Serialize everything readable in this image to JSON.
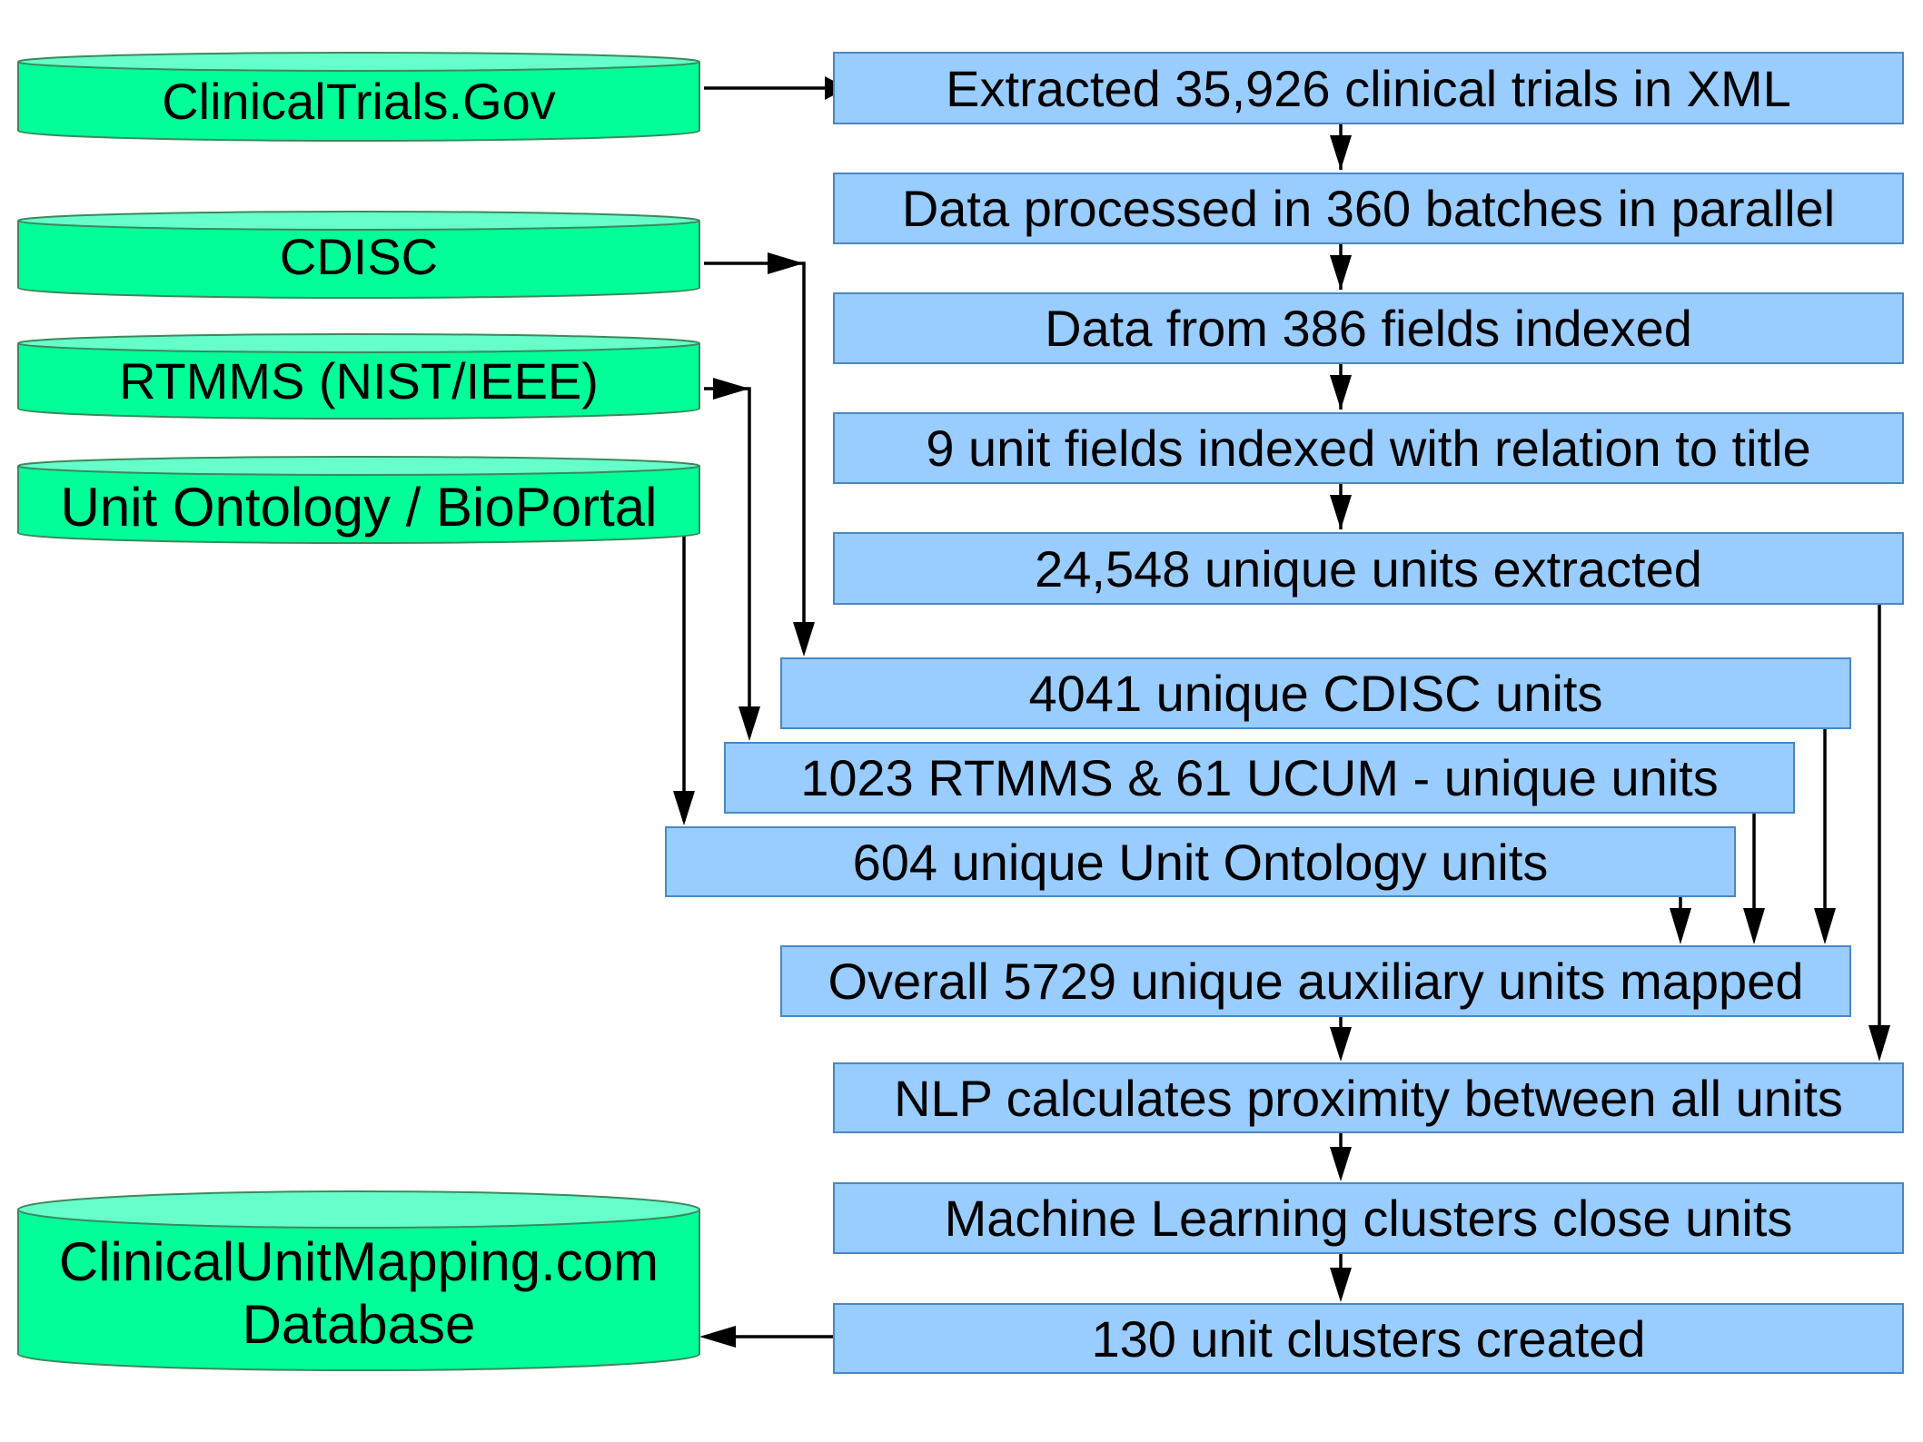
{
  "colors": {
    "source_fill": "#00ff99",
    "source_top": "#66ffcc",
    "source_stroke": "#3a8a5c",
    "step_fill": "#99ccff",
    "step_stroke": "#4a87c6",
    "arrow": "#000000"
  },
  "sources": {
    "clinicaltrials": "ClinicalTrials.Gov",
    "cdisc": "CDISC",
    "rtmms": "RTMMS (NIST/IEEE)",
    "unit_ontology": "Unit Ontology / BioPortal",
    "output_db": "ClinicalUnitMapping.com\nDatabase"
  },
  "steps": {
    "extracted": "Extracted 35,926 clinical trials in XML",
    "batches": "Data processed in 360 batches in parallel",
    "fields": "Data from 386 fields indexed",
    "unit_fields": "9 unit fields indexed with relation to title",
    "unique_units": "24,548 unique units extracted",
    "cdisc_units": "4041 unique CDISC units",
    "rtmms_units": "1023 RTMMS & 61 UCUM - unique units",
    "uo_units": "604 unique Unit Ontology units",
    "auxiliary": "Overall 5729 unique auxiliary units mapped",
    "nlp": "NLP calculates proximity between all units",
    "ml": "Machine Learning clusters close units",
    "clusters": "130 unit clusters created"
  }
}
